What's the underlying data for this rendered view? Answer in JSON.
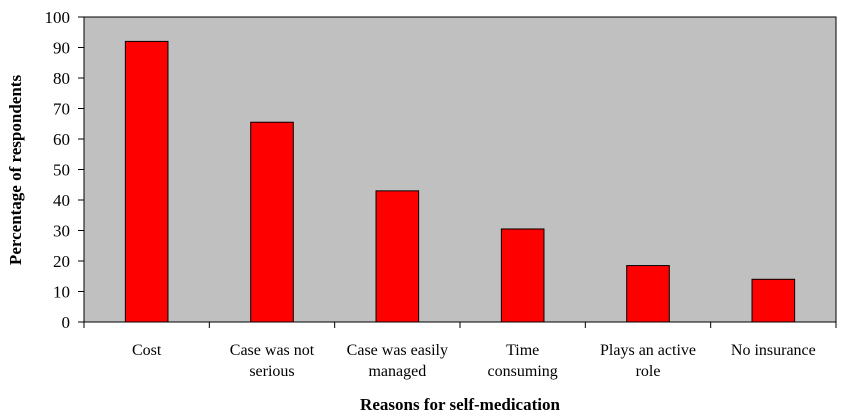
{
  "chart_data": {
    "type": "bar",
    "title": "",
    "xlabel": "Reasons for self-medication",
    "ylabel": "Percentage of respondents",
    "ylim": [
      0,
      100
    ],
    "yticks": [
      0,
      10,
      20,
      30,
      40,
      50,
      60,
      70,
      80,
      90,
      100
    ],
    "grid": false,
    "legend": "none",
    "categories": [
      [
        "Cost"
      ],
      [
        "Case was not",
        "serious"
      ],
      [
        "Case was easily",
        "managed"
      ],
      [
        "Time",
        "consuming"
      ],
      [
        "Plays an active",
        "role"
      ],
      [
        "No insurance"
      ]
    ],
    "values": [
      92,
      65.5,
      43,
      30.5,
      18.5,
      14
    ],
    "colors": {
      "bar": "#ff0000",
      "bar_stroke": "#000000",
      "plot_bg": "#c0c0c0",
      "axis": "#000000"
    }
  }
}
